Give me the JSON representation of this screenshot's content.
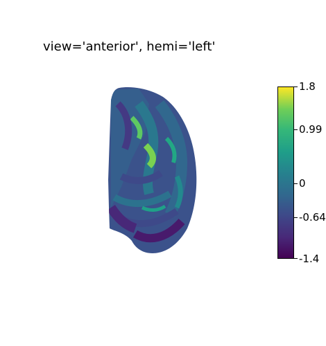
{
  "title": "view='anterior', hemi='left'",
  "colormap": "viridis",
  "colorbar": {
    "ticks": [
      {
        "label": "1.8",
        "value": 1.8
      },
      {
        "label": "0.99",
        "value": 0.99
      },
      {
        "label": "0",
        "value": 0
      },
      {
        "label": "-0.64",
        "value": -0.64
      },
      {
        "label": "-1.4",
        "value": -1.4
      }
    ],
    "min": -1.4,
    "max": 1.8
  },
  "colors": {
    "low": "#440154",
    "mid": "#21918c",
    "high": "#fde725"
  }
}
